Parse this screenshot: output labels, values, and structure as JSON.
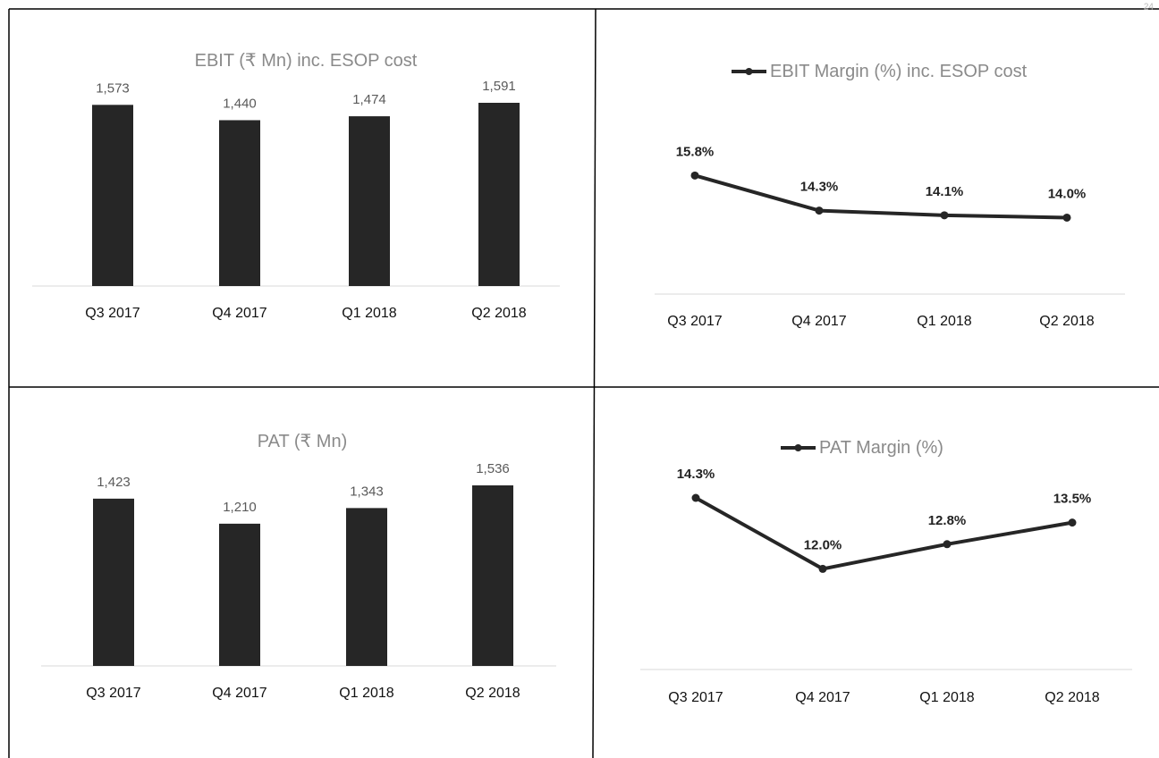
{
  "corner_mark": "24",
  "chart_data": [
    {
      "type": "bar",
      "title": "EBIT (₹ Mn) inc. ESOP cost",
      "categories": [
        "Q3 2017",
        "Q4 2017",
        "Q1 2018",
        "Q2 2018"
      ],
      "values": [
        1573,
        1440,
        1474,
        1591
      ],
      "value_labels": [
        "1,573",
        "1,440",
        "1,474",
        "1,591"
      ],
      "ylim": [
        0,
        1591
      ],
      "color": "#262626",
      "grid": false,
      "legend": "none"
    },
    {
      "type": "line",
      "title": "EBIT Margin (%) inc. ESOP cost",
      "categories": [
        "Q3 2017",
        "Q4 2017",
        "Q1 2018",
        "Q2 2018"
      ],
      "values": [
        15.8,
        14.3,
        14.1,
        14.0
      ],
      "value_labels": [
        "15.8%",
        "14.3%",
        "14.1%",
        "14.0%"
      ],
      "ylim": [
        11.0,
        16.5
      ],
      "color": "#262626",
      "grid": false,
      "legend": "top"
    },
    {
      "type": "bar",
      "title": "PAT (₹ Mn)",
      "categories": [
        "Q3 2017",
        "Q4 2017",
        "Q1 2018",
        "Q2 2018"
      ],
      "values": [
        1423,
        1210,
        1343,
        1536
      ],
      "value_labels": [
        "1,423",
        "1,210",
        "1,343",
        "1,536"
      ],
      "ylim": [
        0,
        1536
      ],
      "color": "#262626",
      "grid": false,
      "legend": "none"
    },
    {
      "type": "line",
      "title": "PAT Margin (%)",
      "categories": [
        "Q3 2017",
        "Q4 2017",
        "Q1 2018",
        "Q2 2018"
      ],
      "values": [
        14.3,
        12.0,
        12.8,
        13.5
      ],
      "value_labels": [
        "14.3%",
        "12.0%",
        "12.8%",
        "13.5%"
      ],
      "ylim": [
        9.0,
        14.3
      ],
      "color": "#262626",
      "grid": false,
      "legend": "top"
    }
  ]
}
